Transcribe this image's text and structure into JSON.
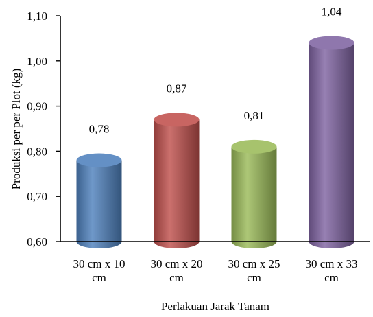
{
  "chart_data": {
    "type": "bar",
    "title": "",
    "xlabel": "Perlakuan Jarak Tanam",
    "ylabel": "Produksi per per Plot (kg)",
    "ylim": [
      0.6,
      1.1
    ],
    "y_ticks": [
      "0,60",
      "0,70",
      "0,80",
      "0,90",
      "1,00",
      "1,10"
    ],
    "categories": [
      [
        "30 cm x 10",
        "cm"
      ],
      [
        "30 cm x 20",
        "cm"
      ],
      [
        "30 cm x 25",
        "cm"
      ],
      [
        "30 cm x 33",
        "cm"
      ]
    ],
    "values": [
      0.78,
      0.87,
      0.81,
      1.04
    ],
    "value_labels": [
      "0,78",
      "0,87",
      "0,81",
      "1,04"
    ],
    "colors": [
      "#4F81BD",
      "#C0504D",
      "#9BBB59",
      "#8064A2"
    ],
    "bar_shape": "cylinder",
    "grid": false,
    "legend": "none"
  }
}
